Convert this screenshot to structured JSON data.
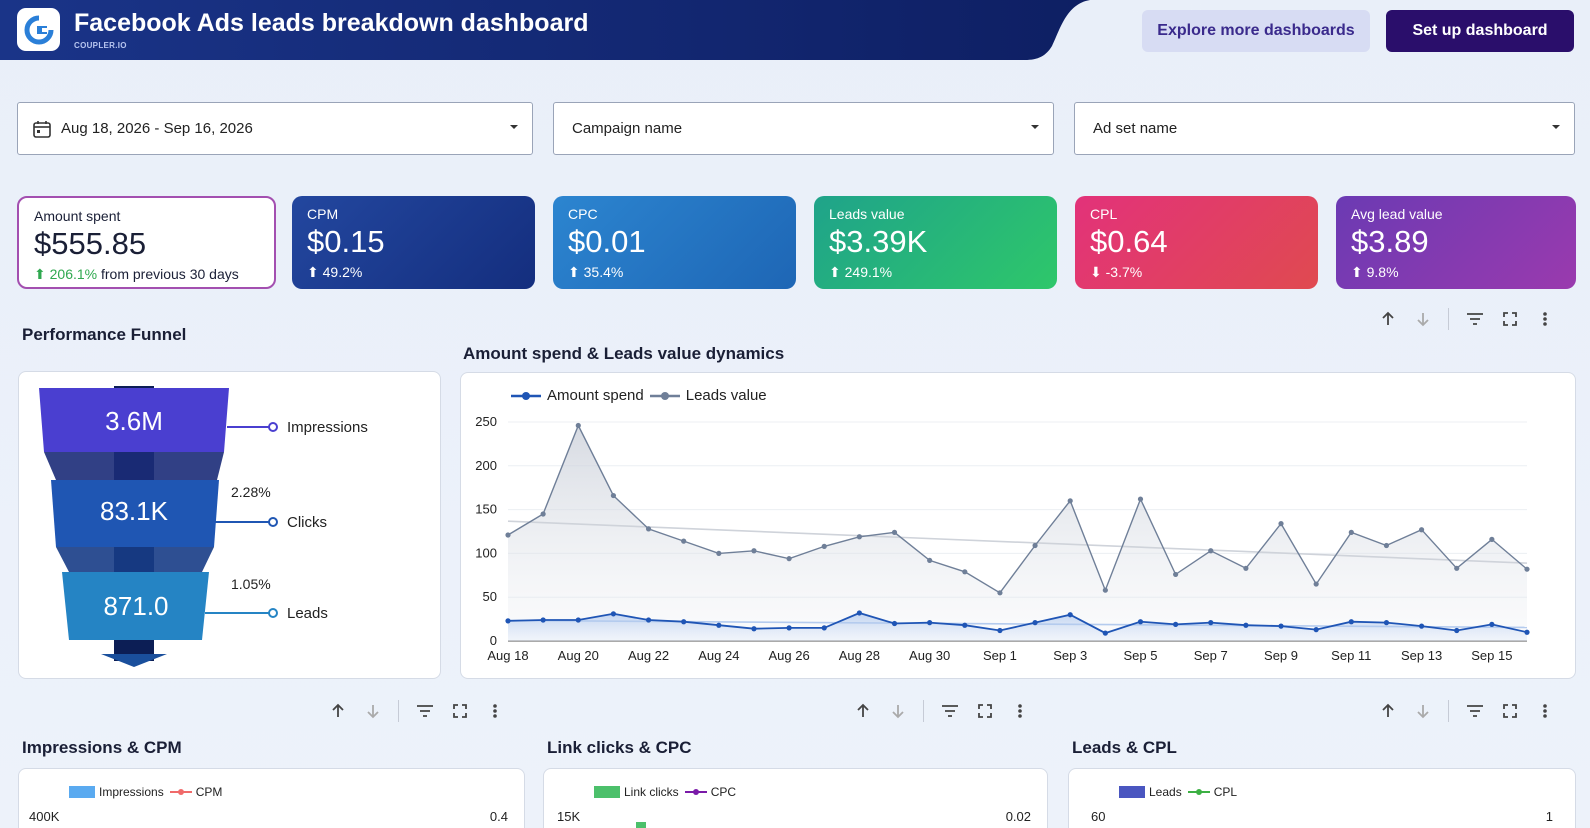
{
  "header": {
    "title": "Facebook Ads leads breakdown dashboard",
    "subtitle": "COUPLER.IO",
    "explore_label": "Explore more dashboards",
    "setup_label": "Set up dashboard"
  },
  "filters": {
    "date_range": "Aug 18, 2026 - Sep 16, 2026",
    "campaign": "Campaign name",
    "adset": "Ad set name"
  },
  "kpis": [
    {
      "label": "Amount spent",
      "value": "$555.85",
      "change": "206.1%",
      "suffix": "from previous 30 days",
      "direction": "up"
    },
    {
      "label": "CPM",
      "value": "$0.15",
      "change": "49.2%",
      "direction": "up",
      "color": "#1f3f95"
    },
    {
      "label": "CPC",
      "value": "$0.01",
      "change": "35.4%",
      "direction": "up",
      "color": "#2676c3"
    },
    {
      "label": "Leads value",
      "value": "$3.39K",
      "change": "249.1%",
      "direction": "up",
      "color": "#22b57a"
    },
    {
      "label": "CPL",
      "value": "$0.64",
      "change": "-3.7%",
      "direction": "down",
      "color": "#db3a6a"
    },
    {
      "label": "Avg lead value",
      "value": "$3.89",
      "change": "9.8%",
      "direction": "up",
      "color": "#7b3bb0"
    }
  ],
  "funnel": {
    "title": "Performance Funnel",
    "stages": [
      {
        "value": "3.6M",
        "label": "Impressions",
        "rate": ""
      },
      {
        "value": "83.1K",
        "label": "Clicks",
        "rate": "2.28%"
      },
      {
        "value": "871.0",
        "label": "Leads",
        "rate": "1.05%"
      }
    ]
  },
  "chart_data": [
    {
      "type": "line",
      "title": "Amount spend & Leads value dynamics",
      "x": [
        "Aug 18",
        "Aug 19",
        "Aug 20",
        "Aug 21",
        "Aug 22",
        "Aug 23",
        "Aug 24",
        "Aug 25",
        "Aug 26",
        "Aug 27",
        "Aug 28",
        "Aug 29",
        "Aug 30",
        "Aug 31",
        "Sep 1",
        "Sep 2",
        "Sep 3",
        "Sep 4",
        "Sep 5",
        "Sep 6",
        "Sep 7",
        "Sep 8",
        "Sep 9",
        "Sep 10",
        "Sep 11",
        "Sep 12",
        "Sep 13",
        "Sep 14",
        "Sep 15",
        "Sep 16"
      ],
      "tick_labels": [
        "Aug 18",
        "Aug 20",
        "Aug 22",
        "Aug 24",
        "Aug 26",
        "Aug 28",
        "Aug 30",
        "Sep 1",
        "Sep 3",
        "Sep 5",
        "Sep 7",
        "Sep 9",
        "Sep 11",
        "Sep 13",
        "Sep 15"
      ],
      "y_ticks": [
        0,
        50,
        100,
        150,
        200,
        250
      ],
      "ylim": [
        0,
        250
      ],
      "series": [
        {
          "name": "Amount spend",
          "color": "#1f55b5",
          "values": [
            23,
            24,
            24,
            31,
            24,
            22,
            18,
            14,
            15,
            15,
            32,
            20,
            21,
            18,
            12,
            21,
            30,
            9,
            22,
            19,
            21,
            18,
            17,
            13,
            22,
            21,
            17,
            12,
            19,
            10
          ]
        },
        {
          "name": "Leads value",
          "color": "#6f7f98",
          "values": [
            121,
            145,
            246,
            166,
            128,
            114,
            100,
            103,
            94,
            108,
            119,
            124,
            92,
            79,
            55,
            109,
            160,
            58,
            162,
            76,
            103,
            83,
            134,
            65,
            124,
            109,
            127,
            83,
            116,
            82
          ]
        }
      ],
      "legend_position": "top-left",
      "trendline": true
    },
    {
      "type": "bar",
      "title": "Impressions & CPM",
      "series": [
        {
          "name": "Impressions",
          "color": "#5aaaf0"
        },
        {
          "name": "CPM",
          "color": "#f06a6a"
        }
      ],
      "y_left_top": "400K",
      "y_right_top": "0.4"
    },
    {
      "type": "bar",
      "title": "Link clicks & CPC",
      "series": [
        {
          "name": "Link clicks",
          "color": "#4cc06b"
        },
        {
          "name": "CPC",
          "color": "#7a1aa8"
        }
      ],
      "y_left_top": "15K",
      "y_right_top": "0.02"
    },
    {
      "type": "bar",
      "title": "Leads & CPL",
      "series": [
        {
          "name": "Leads",
          "color": "#4a56c0"
        },
        {
          "name": "CPL",
          "color": "#3cb043"
        }
      ],
      "y_left_top": "60",
      "y_right_top": "1"
    }
  ]
}
